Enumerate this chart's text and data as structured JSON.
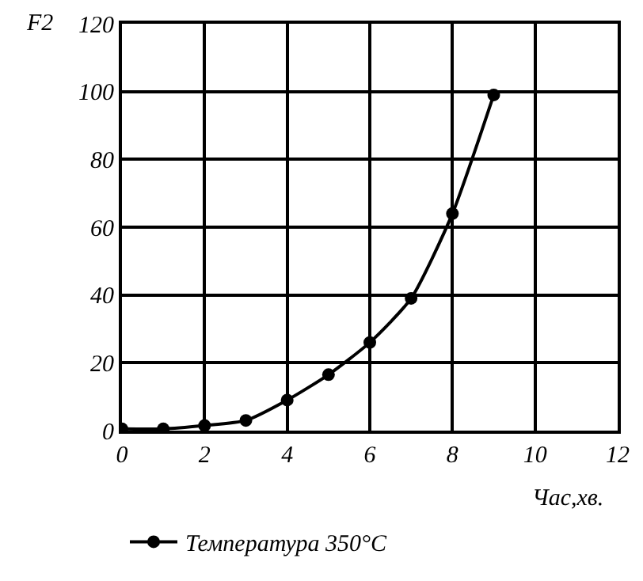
{
  "chart_data": {
    "type": "line",
    "xlabel": "Час,хв.",
    "ylabel": "F2",
    "x": [
      0,
      1,
      2,
      3,
      4,
      5,
      6,
      7,
      8,
      9
    ],
    "series": [
      {
        "name": "Температура 350°C",
        "color": "#000000",
        "values": [
          0.5,
          0.5,
          1.5,
          3,
          9,
          16.5,
          26,
          39,
          64,
          99
        ]
      }
    ],
    "xlim": [
      0,
      12
    ],
    "xticks": [
      0,
      2,
      4,
      6,
      8,
      10,
      12
    ],
    "ylim": [
      0,
      120
    ],
    "yticks": [
      0,
      20,
      40,
      60,
      80,
      100,
      120
    ],
    "grid": true,
    "legend": "bottom left",
    "marker": "circle",
    "line_style": "solid"
  }
}
